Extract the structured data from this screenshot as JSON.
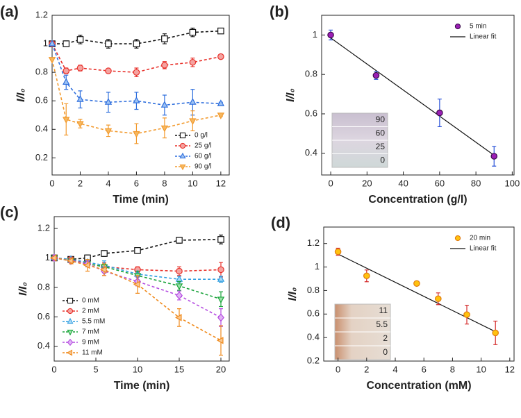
{
  "chart_data": [
    {
      "type": "line",
      "label": "(a)",
      "xlabel": "Time (min)",
      "ylabel": "I/I₀",
      "xlim": [
        0,
        12.6
      ],
      "xticks": [
        0,
        2,
        4,
        6,
        8,
        10,
        12
      ],
      "ylim": [
        0.08,
        1.2
      ],
      "yticks": [
        0.2,
        0.4,
        0.6,
        0.8,
        1,
        1.2
      ],
      "legend": "lower right",
      "x": [
        0,
        1,
        2,
        4,
        6,
        8,
        10,
        12
      ],
      "series": [
        {
          "name": "0 g/l",
          "color": "#111111",
          "fill": "#ffffff",
          "marker": "square",
          "values": [
            1.0,
            1.0,
            1.03,
            1.0,
            1.0,
            1.035,
            1.08,
            1.09
          ],
          "errors": [
            0,
            0.02,
            0.03,
            0.03,
            0.03,
            0.035,
            0.03,
            0.01
          ]
        },
        {
          "name": "25 g/l",
          "color": "#e8302a",
          "fill": "#f4a3a0",
          "marker": "circle",
          "values": [
            1.0,
            0.81,
            0.83,
            0.81,
            0.8,
            0.85,
            0.87,
            0.91
          ],
          "errors": [
            0,
            0.02,
            0.02,
            0.015,
            0.03,
            0.025,
            0.03,
            0.01
          ]
        },
        {
          "name": "60 g/l",
          "color": "#2f6fdd",
          "fill": "#9ec3f4",
          "marker": "triangle-up",
          "values": [
            1.0,
            0.73,
            0.61,
            0.59,
            0.6,
            0.57,
            0.59,
            0.58
          ],
          "errors": [
            0,
            0.05,
            0.06,
            0.07,
            0.06,
            0.07,
            0.09,
            0.01
          ]
        },
        {
          "name": "90 g/l",
          "color": "#f29a2e",
          "fill": "#f6b860",
          "marker": "triangle-down",
          "values": [
            0.89,
            0.47,
            0.44,
            0.39,
            0.37,
            0.41,
            0.46,
            0.5
          ],
          "errors": [
            0,
            0.11,
            0.03,
            0.04,
            0.07,
            0.07,
            0.07,
            0.01
          ]
        }
      ]
    },
    {
      "type": "scatter",
      "label": "(b)",
      "xlabel": "Concentration (g/l)",
      "ylabel": "I/I₀",
      "xlim": [
        -5,
        101
      ],
      "xticks": [
        0,
        20,
        40,
        60,
        80,
        100
      ],
      "ylim": [
        0.29,
        1.1
      ],
      "yticks": [
        0.4,
        0.6,
        0.8,
        1
      ],
      "legend": "upper right",
      "x": [
        0,
        25,
        60,
        90
      ],
      "series": [
        {
          "name": "5 min",
          "color": "#9b1fb5",
          "edge": "#3a0a4a",
          "error_color": "#2a52d8",
          "marker": "circle",
          "values": [
            1.0,
            0.795,
            0.605,
            0.385
          ],
          "errors": [
            0.025,
            0.02,
            0.07,
            0.05
          ]
        }
      ],
      "fit": {
        "name": "Linear fit",
        "color": "#111111",
        "x": [
          0,
          90
        ],
        "values": [
          0.985,
          0.39
        ]
      },
      "inset_labels": [
        "90",
        "60",
        "25",
        "0"
      ]
    },
    {
      "type": "line",
      "label": "(c)",
      "xlabel": "Time (min)",
      "ylabel": "I/I₀",
      "xlim": [
        0,
        21
      ],
      "xticks": [
        0,
        5,
        10,
        15,
        20
      ],
      "ylim": [
        0.3,
        1.28
      ],
      "yticks": [
        0.4,
        0.6,
        0.8,
        1,
        1.2
      ],
      "legend": "lower left",
      "x": [
        0,
        2,
        4,
        6,
        10,
        15,
        20
      ],
      "series": [
        {
          "name": "0 mM",
          "color": "#111111",
          "fill": "#ffffff",
          "marker": "square",
          "values": [
            1.0,
            0.99,
            1.0,
            1.03,
            1.05,
            1.12,
            1.125
          ],
          "errors": [
            0,
            0,
            0.02,
            0.02,
            0.02,
            0.02,
            0.03
          ]
        },
        {
          "name": "2 mM",
          "color": "#e8302a",
          "fill": "#f4a3a0",
          "marker": "circle",
          "values": [
            1.0,
            0.99,
            0.96,
            0.94,
            0.92,
            0.91,
            0.92
          ],
          "errors": [
            0,
            0.01,
            0.02,
            0.03,
            0.02,
            0.03,
            0.05
          ]
        },
        {
          "name": "5.5 mM",
          "color": "#2f9ee0",
          "fill": "#a8d8f6",
          "marker": "triangle-up",
          "values": [
            1.0,
            0.99,
            0.97,
            0.95,
            0.89,
            0.855,
            0.855
          ],
          "errors": [
            0,
            0.01,
            0.02,
            0.03,
            0.02,
            0.02,
            0.02
          ]
        },
        {
          "name": "7 mM",
          "color": "#1aa33b",
          "fill": "#9be3a8",
          "marker": "triangle-down",
          "values": [
            1.0,
            0.98,
            0.96,
            0.94,
            0.88,
            0.81,
            0.72
          ],
          "errors": [
            0,
            0.01,
            0.02,
            0.02,
            0.03,
            0.03,
            0.05
          ]
        },
        {
          "name": "9 mM",
          "color": "#b44ae0",
          "fill": "#e1b4f5",
          "marker": "diamond",
          "values": [
            1.0,
            0.98,
            0.96,
            0.91,
            0.84,
            0.745,
            0.595
          ],
          "errors": [
            0,
            0.01,
            0.02,
            0.03,
            0.03,
            0.03,
            0.06
          ]
        },
        {
          "name": "11 mM",
          "color": "#f08a1c",
          "fill": "#f8c690",
          "marker": "triangle-left",
          "values": [
            1.0,
            0.98,
            0.95,
            0.92,
            0.82,
            0.595,
            0.44
          ],
          "errors": [
            0,
            0.02,
            0.04,
            0.04,
            0.06,
            0.06,
            0.1
          ]
        }
      ]
    },
    {
      "type": "scatter",
      "label": "(d)",
      "xlabel": "Concentration (mM)",
      "ylabel": "I/I₀",
      "xlim": [
        -1,
        12.3
      ],
      "xticks": [
        0,
        2,
        4,
        6,
        8,
        10,
        12
      ],
      "ylim": [
        0.2,
        1.34
      ],
      "yticks": [
        0.2,
        0.4,
        0.6,
        0.8,
        1,
        1.2
      ],
      "legend": "upper right",
      "x": [
        0,
        2,
        5.5,
        7,
        9,
        11
      ],
      "series": [
        {
          "name": "20 min",
          "color": "#ffc20e",
          "edge": "#e07a10",
          "error_color": "#d42a2a",
          "marker": "circle",
          "values": [
            1.13,
            0.925,
            0.86,
            0.73,
            0.595,
            0.44
          ],
          "errors": [
            0.03,
            0.05,
            0.015,
            0.05,
            0.08,
            0.1
          ]
        }
      ],
      "fit": {
        "name": "Linear fit",
        "color": "#111111",
        "x": [
          0,
          11
        ],
        "values": [
          1.11,
          0.45
        ]
      },
      "inset_labels": [
        "11",
        "5.5",
        "2",
        "0"
      ]
    }
  ]
}
